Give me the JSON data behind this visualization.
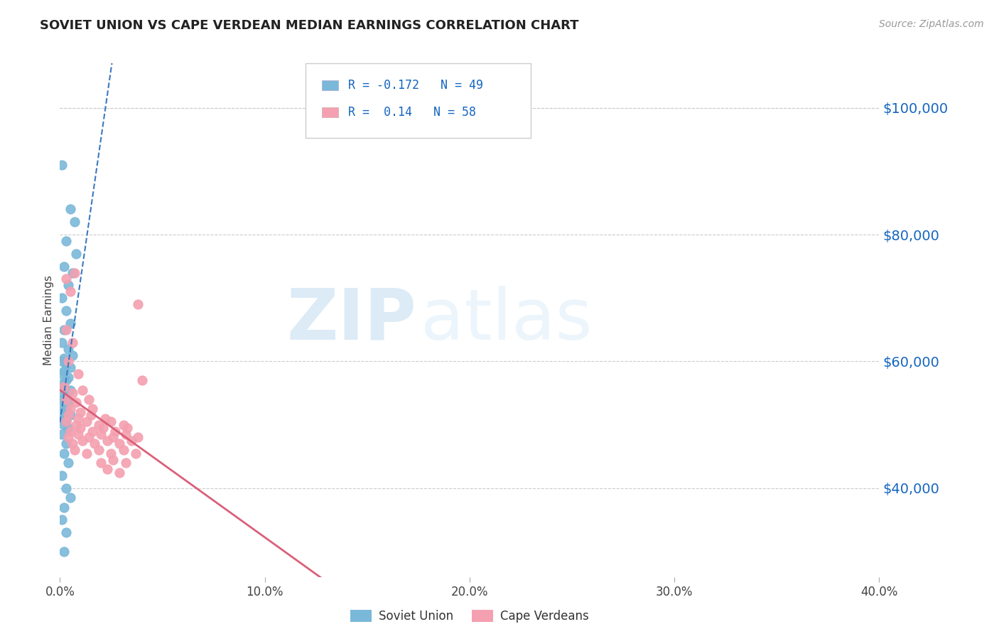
{
  "title": "SOVIET UNION VS CAPE VERDEAN MEDIAN EARNINGS CORRELATION CHART",
  "source": "Source: ZipAtlas.com",
  "ylabel": "Median Earnings",
  "y_ticks": [
    40000,
    60000,
    80000,
    100000
  ],
  "y_tick_labels": [
    "$40,000",
    "$60,000",
    "$80,000",
    "$100,000"
  ],
  "x_range": [
    0.0,
    0.4
  ],
  "y_range": [
    26000,
    107000
  ],
  "soviet_R": -0.172,
  "soviet_N": 49,
  "cape_R": 0.14,
  "cape_N": 58,
  "soviet_color": "#7ab8d9",
  "soviet_line_color": "#3a7abf",
  "cape_color": "#f4a0b0",
  "cape_line_color": "#d9607a",
  "soviet_scatter": [
    [
      0.001,
      91000
    ],
    [
      0.005,
      84000
    ],
    [
      0.007,
      82000
    ],
    [
      0.003,
      79000
    ],
    [
      0.008,
      77000
    ],
    [
      0.002,
      75000
    ],
    [
      0.006,
      74000
    ],
    [
      0.004,
      72000
    ],
    [
      0.001,
      70000
    ],
    [
      0.003,
      68000
    ],
    [
      0.005,
      66000
    ],
    [
      0.002,
      65000
    ],
    [
      0.001,
      63000
    ],
    [
      0.004,
      62000
    ],
    [
      0.006,
      61000
    ],
    [
      0.002,
      60500
    ],
    [
      0.001,
      60000
    ],
    [
      0.003,
      59500
    ],
    [
      0.005,
      59000
    ],
    [
      0.002,
      58500
    ],
    [
      0.001,
      58000
    ],
    [
      0.004,
      57500
    ],
    [
      0.003,
      57000
    ],
    [
      0.001,
      56500
    ],
    [
      0.002,
      56000
    ],
    [
      0.005,
      55500
    ],
    [
      0.001,
      55000
    ],
    [
      0.003,
      54500
    ],
    [
      0.002,
      54000
    ],
    [
      0.004,
      53500
    ],
    [
      0.001,
      53000
    ],
    [
      0.003,
      52500
    ],
    [
      0.002,
      52000
    ],
    [
      0.005,
      51500
    ],
    [
      0.001,
      51000
    ],
    [
      0.003,
      50500
    ],
    [
      0.002,
      50000
    ],
    [
      0.004,
      49500
    ],
    [
      0.001,
      48500
    ],
    [
      0.003,
      47000
    ],
    [
      0.002,
      45500
    ],
    [
      0.004,
      44000
    ],
    [
      0.001,
      42000
    ],
    [
      0.003,
      40000
    ],
    [
      0.005,
      38500
    ],
    [
      0.002,
      37000
    ],
    [
      0.001,
      35000
    ],
    [
      0.003,
      33000
    ],
    [
      0.002,
      30000
    ]
  ],
  "cape_scatter": [
    [
      0.003,
      73000
    ],
    [
      0.005,
      71000
    ],
    [
      0.007,
      74000
    ],
    [
      0.003,
      65000
    ],
    [
      0.006,
      63000
    ],
    [
      0.004,
      60000
    ],
    [
      0.009,
      58000
    ],
    [
      0.002,
      56000
    ],
    [
      0.006,
      55000
    ],
    [
      0.011,
      55500
    ],
    [
      0.003,
      54000
    ],
    [
      0.008,
      53500
    ],
    [
      0.014,
      54000
    ],
    [
      0.005,
      52500
    ],
    [
      0.01,
      52000
    ],
    [
      0.016,
      52500
    ],
    [
      0.004,
      51500
    ],
    [
      0.009,
      51000
    ],
    [
      0.015,
      51500
    ],
    [
      0.022,
      51000
    ],
    [
      0.003,
      50500
    ],
    [
      0.008,
      50000
    ],
    [
      0.013,
      50500
    ],
    [
      0.019,
      50000
    ],
    [
      0.025,
      50500
    ],
    [
      0.031,
      50000
    ],
    [
      0.005,
      49000
    ],
    [
      0.01,
      49500
    ],
    [
      0.016,
      49000
    ],
    [
      0.021,
      49500
    ],
    [
      0.027,
      49000
    ],
    [
      0.033,
      49500
    ],
    [
      0.004,
      48000
    ],
    [
      0.009,
      48500
    ],
    [
      0.014,
      48000
    ],
    [
      0.02,
      48500
    ],
    [
      0.026,
      48000
    ],
    [
      0.032,
      48500
    ],
    [
      0.038,
      48000
    ],
    [
      0.006,
      47000
    ],
    [
      0.011,
      47500
    ],
    [
      0.017,
      47000
    ],
    [
      0.023,
      47500
    ],
    [
      0.029,
      47000
    ],
    [
      0.035,
      47500
    ],
    [
      0.007,
      46000
    ],
    [
      0.013,
      45500
    ],
    [
      0.019,
      46000
    ],
    [
      0.025,
      45500
    ],
    [
      0.031,
      46000
    ],
    [
      0.037,
      45500
    ],
    [
      0.02,
      44000
    ],
    [
      0.026,
      44500
    ],
    [
      0.032,
      44000
    ],
    [
      0.038,
      69000
    ],
    [
      0.023,
      43000
    ],
    [
      0.029,
      42500
    ],
    [
      0.04,
      57000
    ]
  ],
  "watermark_zip": "ZIP",
  "watermark_atlas": "atlas",
  "grid_color": "#cccccc",
  "background_color": "#ffffff"
}
